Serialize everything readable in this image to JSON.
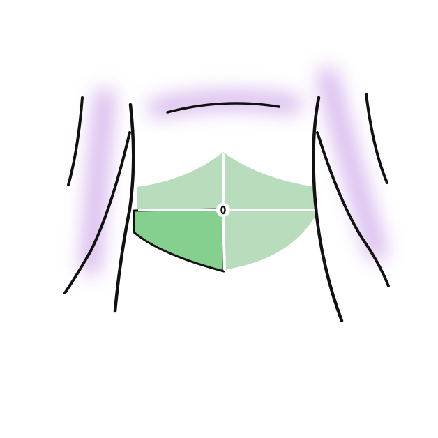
{
  "diagram": {
    "subject": "abdomen-quadrants",
    "highlighted_region": "lower-left-quadrant",
    "colors": {
      "background": "#ffffff",
      "outline": "#111111",
      "glow": "#c79be6",
      "abdomen_fill": "#b9dcbd",
      "highlight_fill": "#86d08f",
      "divider": "#ffffff"
    }
  }
}
